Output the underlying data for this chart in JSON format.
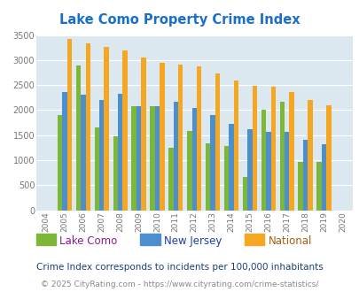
{
  "title": "Lake Como Property Crime Index",
  "years": [
    2004,
    2005,
    2006,
    2007,
    2008,
    2009,
    2010,
    2011,
    2012,
    2013,
    2014,
    2015,
    2016,
    2017,
    2018,
    2019,
    2020
  ],
  "lake_como": [
    null,
    1900,
    2900,
    1650,
    1480,
    2070,
    2080,
    1250,
    1580,
    1330,
    1290,
    660,
    2000,
    2160,
    960,
    960,
    null
  ],
  "new_jersey": [
    null,
    2360,
    2300,
    2200,
    2330,
    2070,
    2070,
    2160,
    2050,
    1900,
    1730,
    1620,
    1560,
    1560,
    1400,
    1320,
    null
  ],
  "national": [
    null,
    3420,
    3330,
    3260,
    3200,
    3050,
    2950,
    2910,
    2870,
    2740,
    2600,
    2490,
    2460,
    2370,
    2200,
    2100,
    null
  ],
  "lake_como_color": "#7db73a",
  "new_jersey_color": "#4d8fcc",
  "national_color": "#f5a623",
  "bg_color": "#dce8f0",
  "ylim": [
    0,
    3500
  ],
  "yticks": [
    0,
    500,
    1000,
    1500,
    2000,
    2500,
    3000,
    3500
  ],
  "subtitle": "Crime Index corresponds to incidents per 100,000 inhabitants",
  "footer": "© 2025 CityRating.com - https://www.cityrating.com/crime-statistics/",
  "legend_labels": [
    "Lake Como",
    "New Jersey",
    "National"
  ],
  "legend_label_colors": [
    "#8b1a8b",
    "#1a3fa8",
    "#a06010"
  ],
  "title_color": "#1a6fcc",
  "subtitle_color": "#1a3f7a",
  "footer_color": "#888888"
}
